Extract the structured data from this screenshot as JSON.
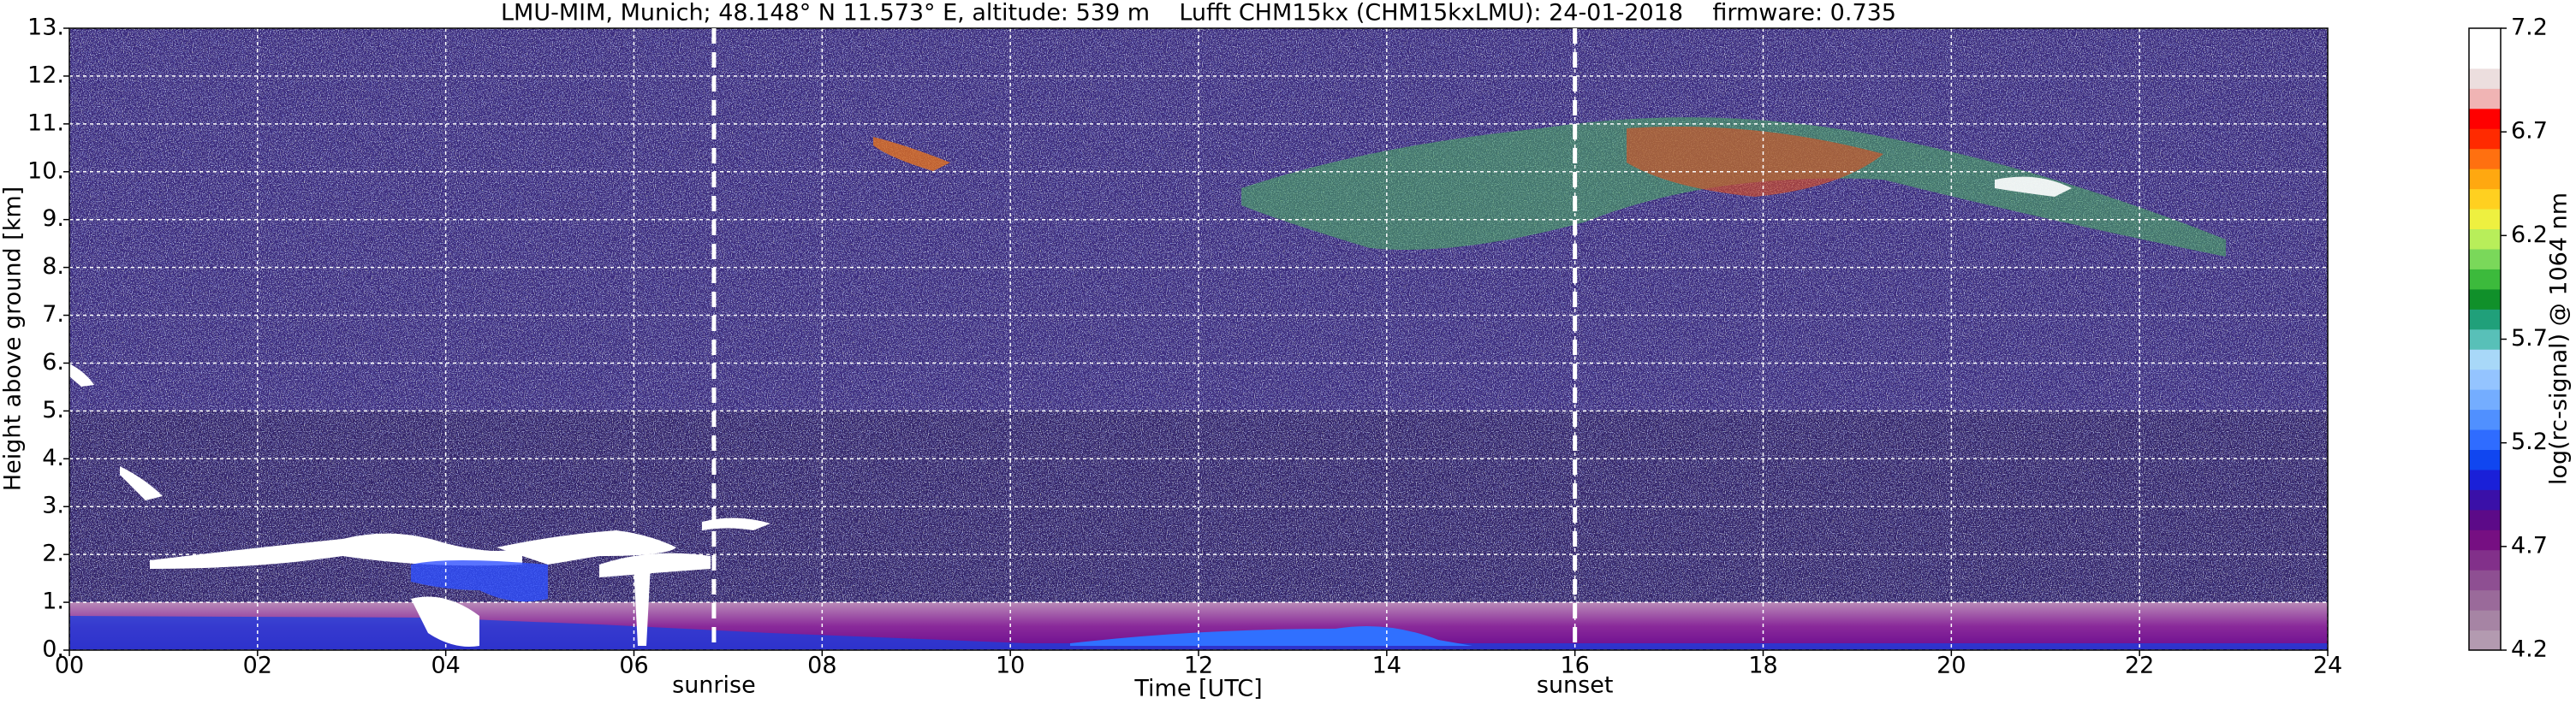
{
  "chart_data": {
    "type": "heatmap",
    "title": "LMU-MIM, Munich; 48.148° N 11.573° E, altitude: 539 m    Lufft CHM15kx (CHM15kxLMU): 24-01-2018    firmware: 0.735",
    "xlabel": "Time [UTC]",
    "ylabel": "Height above ground [km]",
    "xlim": [
      0,
      24
    ],
    "xticks": [
      {
        "value": 0,
        "label": "00"
      },
      {
        "value": 2,
        "label": "02"
      },
      {
        "value": 4,
        "label": "04"
      },
      {
        "value": 6,
        "label": "06"
      },
      {
        "value": 8,
        "label": "08"
      },
      10,
      12,
      14,
      16,
      18,
      20,
      22,
      24
    ],
    "ylim": [
      0,
      13
    ],
    "yticks": [
      {
        "value": 0,
        "label": "0."
      },
      {
        "value": 1,
        "label": "1."
      },
      {
        "value": 2,
        "label": "2."
      },
      {
        "value": 3,
        "label": "3."
      },
      {
        "value": 4,
        "label": "4."
      },
      {
        "value": 5,
        "label": "5."
      },
      {
        "value": 6,
        "label": "6."
      },
      {
        "value": 7,
        "label": "7."
      },
      {
        "value": 8,
        "label": "8."
      },
      {
        "value": 9,
        "label": "9."
      },
      {
        "value": 10,
        "label": "10."
      },
      {
        "value": 11,
        "label": "11."
      },
      {
        "value": 12,
        "label": "12."
      },
      {
        "value": 13,
        "label": "13."
      }
    ],
    "grid": true,
    "annotations": [
      {
        "text": "sunrise",
        "x": 6.85
      },
      {
        "text": "sunset",
        "x": 16.0
      }
    ],
    "colorbar": {
      "label": "log(rc-signal) @ 1064 nm",
      "lim": [
        4.2,
        7.2
      ],
      "ticks": [
        4.2,
        4.7,
        5.2,
        5.7,
        6.2,
        6.7,
        7.2
      ],
      "colors": [
        "#b39ab0",
        "#a684a4",
        "#9a6a9a",
        "#8e4f92",
        "#82308a",
        "#760f82",
        "#5c0a88",
        "#3a10a8",
        "#1a20d8",
        "#1046f0",
        "#2f6cff",
        "#5090ff",
        "#74adff",
        "#94c4ff",
        "#a8d8f8",
        "#58c0b8",
        "#20a07a",
        "#10902a",
        "#3cba3c",
        "#7ad85a",
        "#b8ee5a",
        "#eef040",
        "#ffd020",
        "#ffa810",
        "#ff7010",
        "#ff2a00",
        "#ff0000",
        "#f0b4b4",
        "#ecdede",
        "#ffffff",
        "#ffffff"
      ]
    }
  }
}
